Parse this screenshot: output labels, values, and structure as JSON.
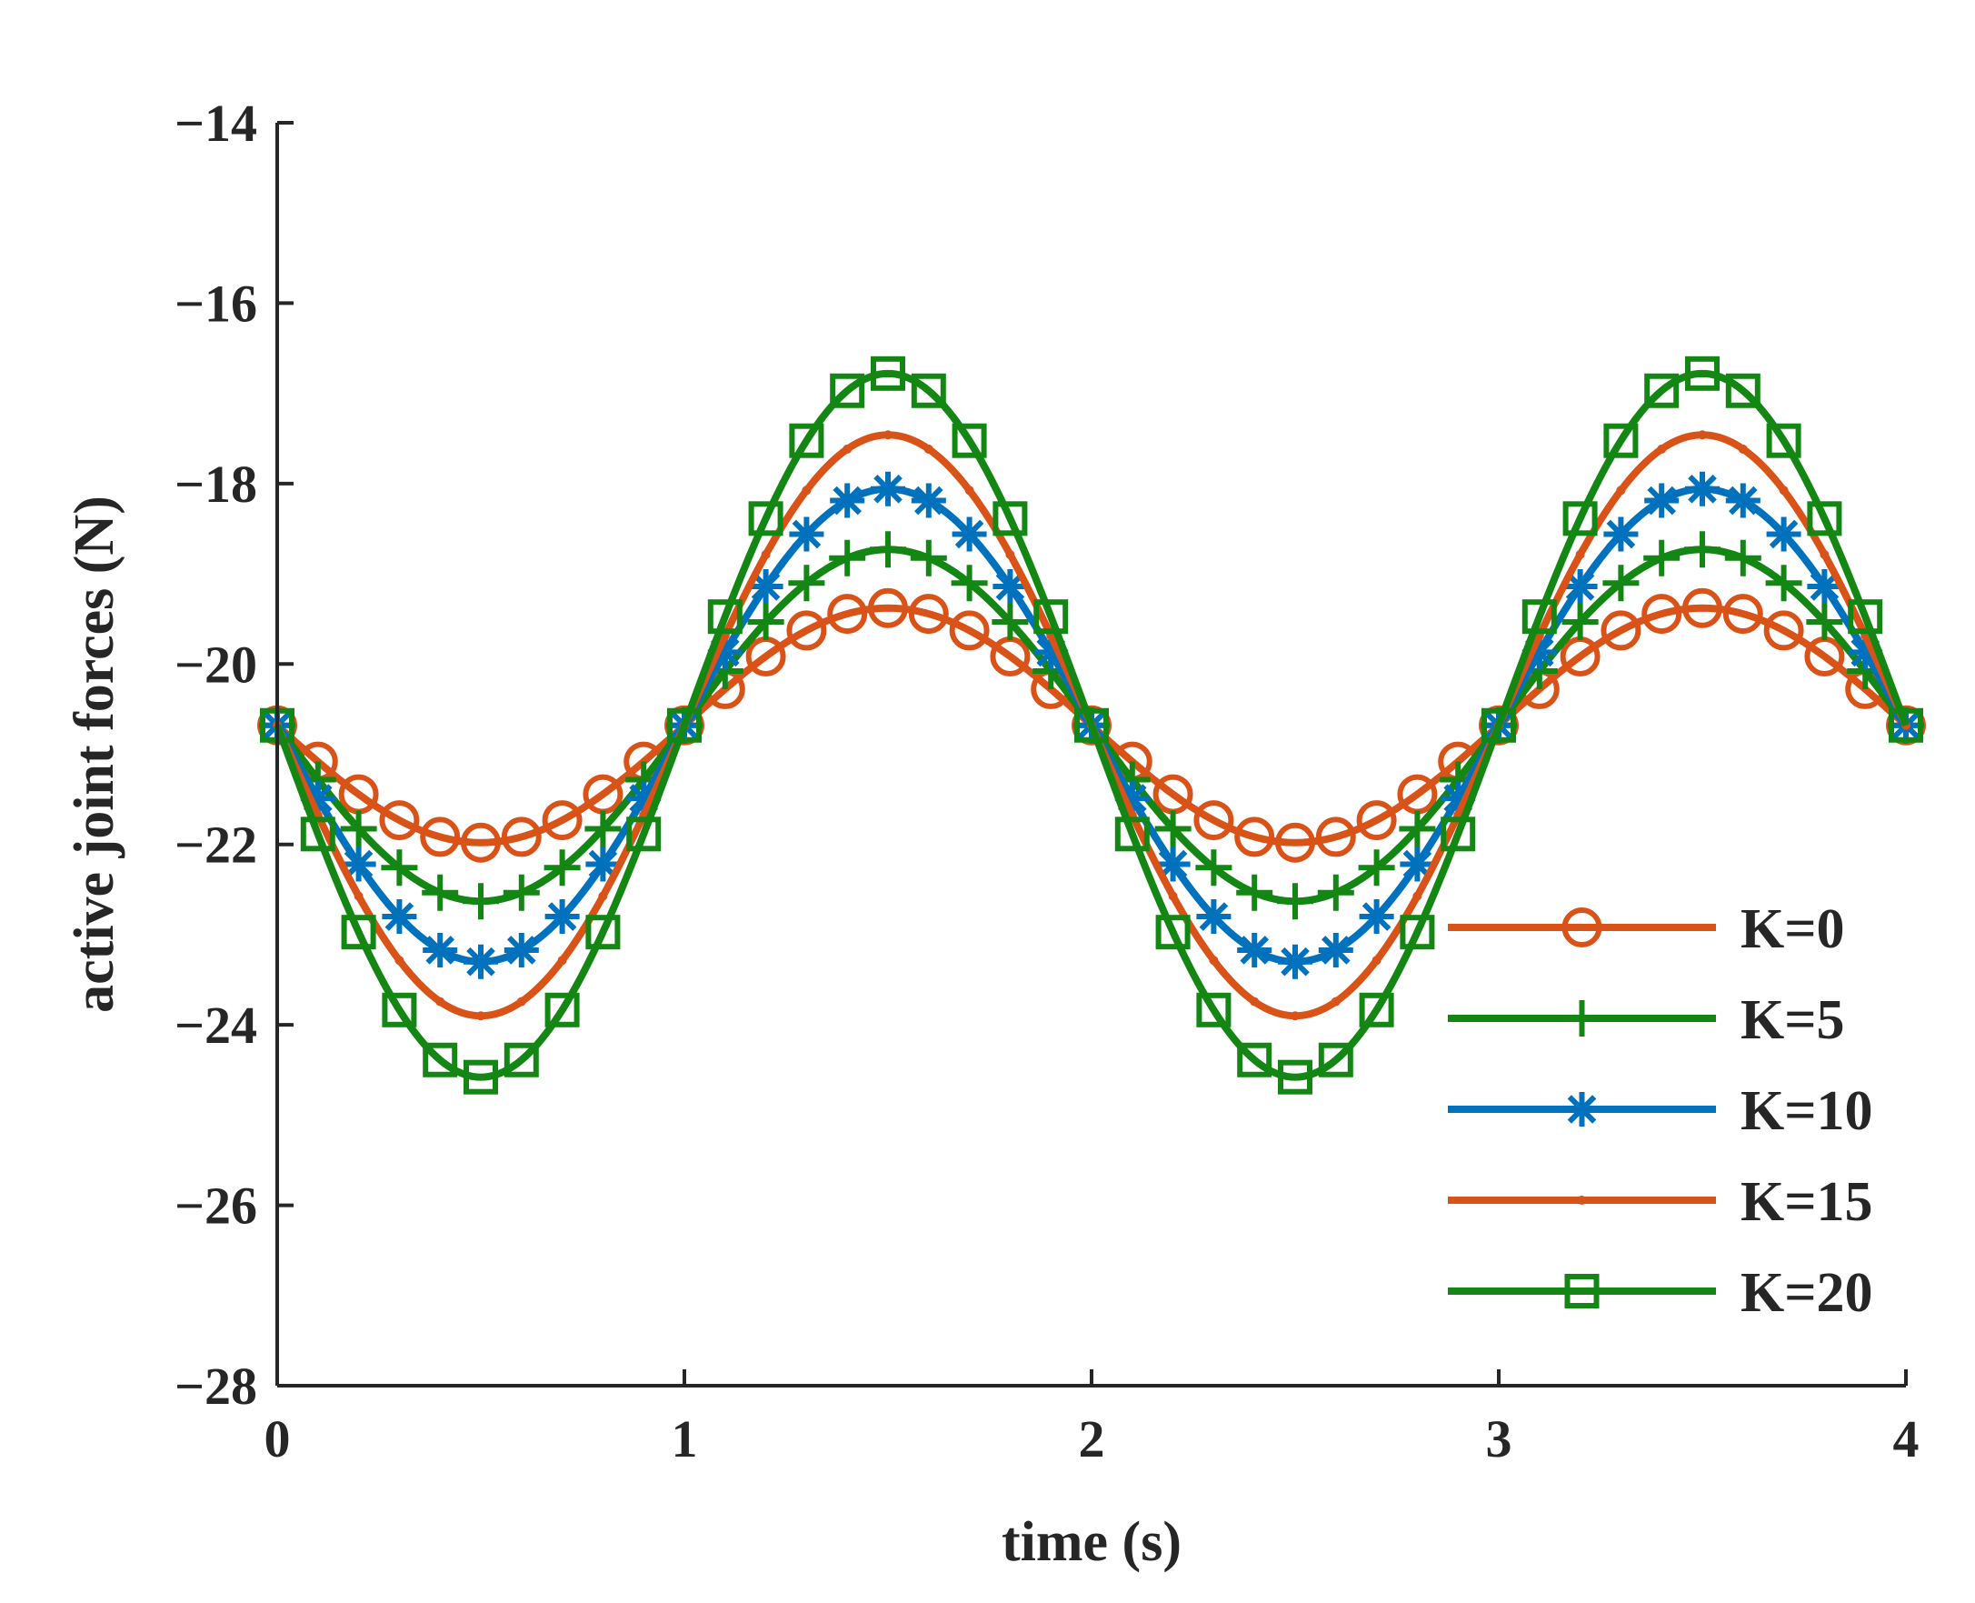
{
  "chart_data": {
    "type": "line",
    "title": "",
    "xlabel": "time (s)",
    "ylabel": "active joint forces (N)",
    "xlim": [
      0,
      4
    ],
    "ylim": [
      -28,
      -14
    ],
    "xticks": [
      0,
      1,
      2,
      3,
      4
    ],
    "xtick_labels": [
      "0",
      "1",
      "2",
      "3",
      "4"
    ],
    "yticks": [
      -28,
      -26,
      -24,
      -22,
      -20,
      -18,
      -16,
      -14
    ],
    "ytick_labels": [
      "−28",
      "−26",
      "−24",
      "−22",
      "−20",
      "−18",
      "−16",
      "−14"
    ],
    "grid": false,
    "legend_position": "lower-right",
    "signal": "y = offset − amplitude · sin(π · t)",
    "offset": -20.68,
    "marker_interval": 0.1,
    "series": [
      {
        "name": "K=0",
        "legend": "K=0",
        "amplitude": 1.3,
        "color": "#D95319",
        "marker": "circle"
      },
      {
        "name": "K=5",
        "legend": "K=5",
        "amplitude": 1.95,
        "color": "#138613",
        "marker": "plus"
      },
      {
        "name": "K=10",
        "legend": "K=10",
        "amplitude": 2.62,
        "color": "#0072BD",
        "marker": "asterisk"
      },
      {
        "name": "K=15",
        "legend": "K=15",
        "amplitude": 3.22,
        "color": "#D95319",
        "marker": "dot"
      },
      {
        "name": "K=20",
        "legend": "K=20",
        "amplitude": 3.9,
        "color": "#138613",
        "marker": "square"
      }
    ]
  }
}
